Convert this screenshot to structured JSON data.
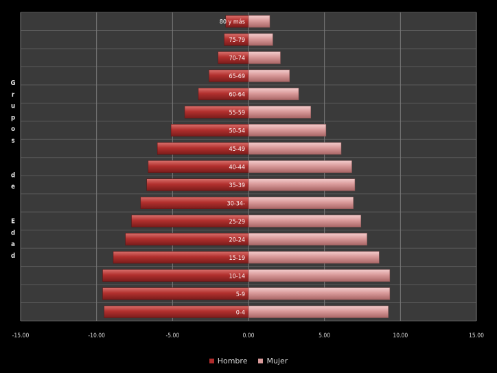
{
  "chart_data": {
    "type": "bar",
    "orientation": "horizontal",
    "layout": "population-pyramid",
    "categories": [
      "0-4",
      "5-9",
      "10-14",
      "15-19",
      "20-24",
      "25-29",
      "30-34-",
      "35-39",
      "40-44",
      "45-49",
      "50-54",
      "55-59",
      "60-64",
      "65-69",
      "70-74",
      "75-79",
      "80 y más"
    ],
    "series": [
      {
        "name": "Hombre",
        "color": "#b02c2c",
        "values": [
          -9.5,
          -9.6,
          -9.6,
          -8.9,
          -8.1,
          -7.7,
          -7.1,
          -6.7,
          -6.6,
          -6.0,
          -5.1,
          -4.2,
          -3.3,
          -2.6,
          -2.0,
          -1.6,
          -1.5
        ]
      },
      {
        "name": "Mujer",
        "color": "#d99a9a",
        "values": [
          9.2,
          9.3,
          9.3,
          8.6,
          7.8,
          7.4,
          6.9,
          7.0,
          6.8,
          6.1,
          5.1,
          4.1,
          3.3,
          2.7,
          2.1,
          1.6,
          1.4
        ]
      }
    ],
    "xlim": [
      -15,
      15
    ],
    "xticks": [
      -15,
      -10,
      -5,
      0,
      5,
      10,
      15
    ],
    "xtick_labels": [
      "-15.00",
      "-10.00",
      "-5.00",
      "0.00",
      "5.00",
      "10.00",
      "15.00"
    ],
    "ylabel": "Grupos de Edad",
    "ylabel_chars": [
      "G",
      "r",
      "u",
      "p",
      "o",
      "s",
      "",
      "",
      "d",
      "e",
      "",
      "",
      "E",
      "d",
      "a",
      "d"
    ],
    "grid": true,
    "legend_position": "bottom"
  }
}
